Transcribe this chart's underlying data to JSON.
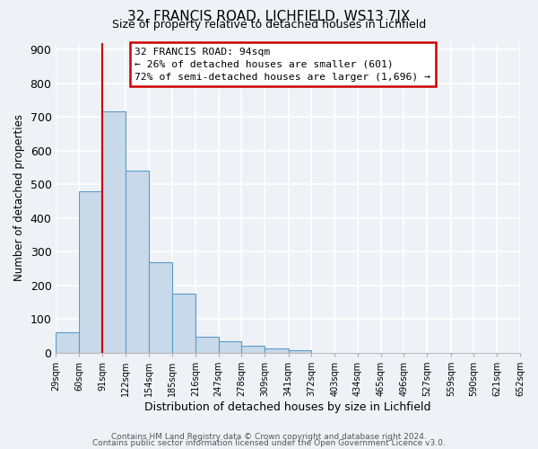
{
  "title_line1": "32, FRANCIS ROAD, LICHFIELD, WS13 7JX",
  "title_line2": "Size of property relative to detached houses in Lichfield",
  "xlabel": "Distribution of detached houses by size in Lichfield",
  "ylabel": "Number of detached properties",
  "bar_values": [
    62,
    480,
    716,
    540,
    270,
    175,
    48,
    35,
    20,
    13,
    7,
    0,
    0,
    0,
    0,
    0,
    0,
    0,
    0,
    0,
    0
  ],
  "bar_edges": [
    29,
    60,
    91,
    122,
    154,
    185,
    216,
    247,
    278,
    309,
    341,
    372,
    403,
    434,
    465,
    496,
    527,
    559,
    590,
    621,
    652
  ],
  "tick_labels": [
    "29sqm",
    "60sqm",
    "91sqm",
    "122sqm",
    "154sqm",
    "185sqm",
    "216sqm",
    "247sqm",
    "278sqm",
    "309sqm",
    "341sqm",
    "372sqm",
    "403sqm",
    "434sqm",
    "465sqm",
    "496sqm",
    "527sqm",
    "559sqm",
    "590sqm",
    "621sqm",
    "652sqm"
  ],
  "bar_color": "#c8d9ea",
  "bar_edge_color": "#5b9bc8",
  "red_line_x": 91,
  "annotation_title": "32 FRANCIS ROAD: 94sqm",
  "annotation_line2": "← 26% of detached houses are smaller (601)",
  "annotation_line3": "72% of semi-detached houses are larger (1,696) →",
  "annotation_box_color": "#ffffff",
  "annotation_box_edge": "#cc0000",
  "red_line_color": "#cc0000",
  "ylim": [
    0,
    920
  ],
  "yticks": [
    0,
    100,
    200,
    300,
    400,
    500,
    600,
    700,
    800,
    900
  ],
  "background_color": "#eef2f7",
  "grid_color": "#ffffff",
  "footer_line1": "Contains HM Land Registry data © Crown copyright and database right 2024.",
  "footer_line2": "Contains public sector information licensed under the Open Government Licence v3.0."
}
